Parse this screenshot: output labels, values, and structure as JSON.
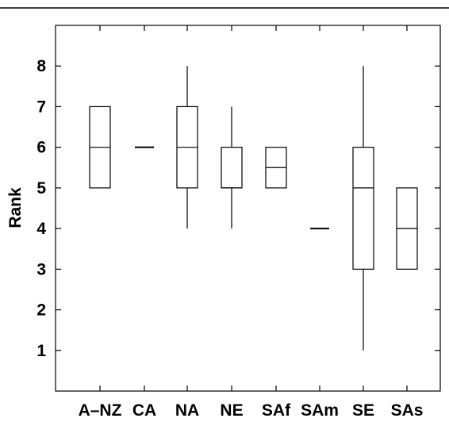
{
  "chart_data": {
    "type": "box",
    "title": "",
    "xlabel": "",
    "ylabel": "Rank",
    "ylim": [
      0,
      9
    ],
    "yticks": [
      1,
      2,
      3,
      4,
      5,
      6,
      7,
      8
    ],
    "ytick_labels": [
      "1",
      "2",
      "3",
      "4",
      "5",
      "6",
      "7",
      "8"
    ],
    "categories": [
      "A–NZ",
      "CA",
      "NA",
      "NE",
      "SAf",
      "SAm",
      "SE",
      "SAs"
    ],
    "boxes": [
      {
        "category": "A–NZ",
        "min": 5,
        "q1": 5,
        "median": 6,
        "q3": 7,
        "max": 7
      },
      {
        "category": "CA",
        "min": 6,
        "q1": 6,
        "median": 6,
        "q3": 6,
        "max": 6
      },
      {
        "category": "NA",
        "min": 4,
        "q1": 5,
        "median": 6,
        "q3": 7,
        "max": 8
      },
      {
        "category": "NE",
        "min": 4,
        "q1": 5,
        "median": 5,
        "q3": 6,
        "max": 7
      },
      {
        "category": "SAf",
        "min": 5,
        "q1": 5,
        "median": 5.5,
        "q3": 6,
        "max": 6
      },
      {
        "category": "SAm",
        "min": 4,
        "q1": 4,
        "median": 4,
        "q3": 4,
        "max": 4
      },
      {
        "category": "SE",
        "min": 1,
        "q1": 3,
        "median": 5,
        "q3": 6,
        "max": 8
      },
      {
        "category": "SAs",
        "min": 3,
        "q1": 3,
        "median": 4,
        "q3": 5,
        "max": 5
      }
    ],
    "grid": false,
    "legend": "none"
  }
}
